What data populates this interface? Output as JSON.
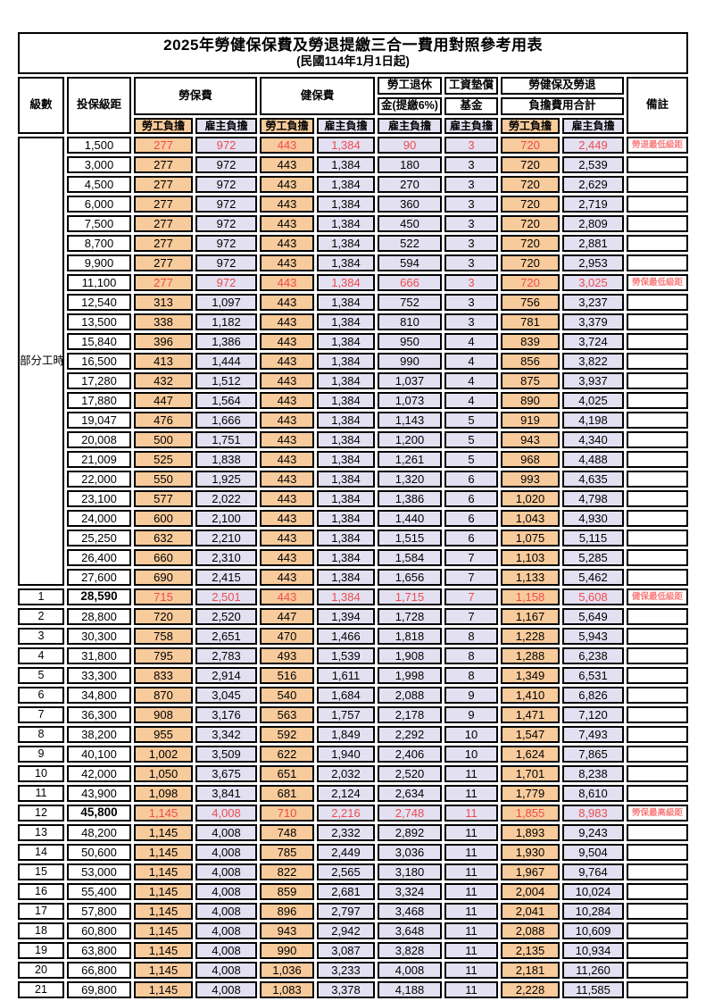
{
  "title": "2025年勞健保保費及勞退提繳三合一費用對照參考用表",
  "subtitle": "(民國114年1月1日起)",
  "header": {
    "level": "級數",
    "bracket": "投保級距",
    "labor_ins": "勞保費",
    "health_ins": "健保費",
    "pension_line1": "勞工退休",
    "pension_line2": "金(提繳6%)",
    "wage_fund_line1": "工資墊償",
    "wage_fund_line2": "基金",
    "total_line1": "勞健保及勞退",
    "total_line2": "負擔費用合計",
    "note": "備註",
    "employee": "勞工負擔",
    "employer": "雇主負擔"
  },
  "colors": {
    "employee_bg": "#F8CB9C",
    "employer_bg": "#E3E1F1",
    "highlight_text": "#EF4B4F",
    "note_text": "#F97F80",
    "border": "#000000"
  },
  "rows": [
    {
      "level": "部分工時",
      "level_rowspan": 23,
      "bracket": "1,500",
      "fees": [
        "277",
        "972",
        "443",
        "1,384",
        "90",
        "3",
        "720",
        "2,449"
      ],
      "note": "勞退最低級距",
      "highlight": true
    },
    {
      "bracket": "3,000",
      "fees": [
        "277",
        "972",
        "443",
        "1,384",
        "180",
        "3",
        "720",
        "2,539"
      ]
    },
    {
      "bracket": "4,500",
      "fees": [
        "277",
        "972",
        "443",
        "1,384",
        "270",
        "3",
        "720",
        "2,629"
      ]
    },
    {
      "bracket": "6,000",
      "fees": [
        "277",
        "972",
        "443",
        "1,384",
        "360",
        "3",
        "720",
        "2,719"
      ]
    },
    {
      "bracket": "7,500",
      "fees": [
        "277",
        "972",
        "443",
        "1,384",
        "450",
        "3",
        "720",
        "2,809"
      ]
    },
    {
      "bracket": "8,700",
      "fees": [
        "277",
        "972",
        "443",
        "1,384",
        "522",
        "3",
        "720",
        "2,881"
      ]
    },
    {
      "bracket": "9,900",
      "fees": [
        "277",
        "972",
        "443",
        "1,384",
        "594",
        "3",
        "720",
        "2,953"
      ]
    },
    {
      "bracket": "11,100",
      "fees": [
        "277",
        "972",
        "443",
        "1,384",
        "666",
        "3",
        "720",
        "3,025"
      ],
      "note": "勞保最低級距",
      "highlight": true
    },
    {
      "bracket": "12,540",
      "fees": [
        "313",
        "1,097",
        "443",
        "1,384",
        "752",
        "3",
        "756",
        "3,237"
      ]
    },
    {
      "bracket": "13,500",
      "fees": [
        "338",
        "1,182",
        "443",
        "1,384",
        "810",
        "3",
        "781",
        "3,379"
      ]
    },
    {
      "bracket": "15,840",
      "fees": [
        "396",
        "1,386",
        "443",
        "1,384",
        "950",
        "4",
        "839",
        "3,724"
      ]
    },
    {
      "bracket": "16,500",
      "fees": [
        "413",
        "1,444",
        "443",
        "1,384",
        "990",
        "4",
        "856",
        "3,822"
      ]
    },
    {
      "bracket": "17,280",
      "fees": [
        "432",
        "1,512",
        "443",
        "1,384",
        "1,037",
        "4",
        "875",
        "3,937"
      ]
    },
    {
      "bracket": "17,880",
      "fees": [
        "447",
        "1,564",
        "443",
        "1,384",
        "1,073",
        "4",
        "890",
        "4,025"
      ]
    },
    {
      "bracket": "19,047",
      "fees": [
        "476",
        "1,666",
        "443",
        "1,384",
        "1,143",
        "5",
        "919",
        "4,198"
      ]
    },
    {
      "bracket": "20,008",
      "fees": [
        "500",
        "1,751",
        "443",
        "1,384",
        "1,200",
        "5",
        "943",
        "4,340"
      ]
    },
    {
      "bracket": "21,009",
      "fees": [
        "525",
        "1,838",
        "443",
        "1,384",
        "1,261",
        "5",
        "968",
        "4,488"
      ]
    },
    {
      "bracket": "22,000",
      "fees": [
        "550",
        "1,925",
        "443",
        "1,384",
        "1,320",
        "6",
        "993",
        "4,635"
      ]
    },
    {
      "bracket": "23,100",
      "fees": [
        "577",
        "2,022",
        "443",
        "1,384",
        "1,386",
        "6",
        "1,020",
        "4,798"
      ]
    },
    {
      "bracket": "24,000",
      "fees": [
        "600",
        "2,100",
        "443",
        "1,384",
        "1,440",
        "6",
        "1,043",
        "4,930"
      ]
    },
    {
      "bracket": "25,250",
      "fees": [
        "632",
        "2,210",
        "443",
        "1,384",
        "1,515",
        "6",
        "1,075",
        "5,115"
      ]
    },
    {
      "bracket": "26,400",
      "fees": [
        "660",
        "2,310",
        "443",
        "1,384",
        "1,584",
        "7",
        "1,103",
        "5,285"
      ]
    },
    {
      "bracket": "27,600",
      "fees": [
        "690",
        "2,415",
        "443",
        "1,384",
        "1,656",
        "7",
        "1,133",
        "5,462"
      ]
    },
    {
      "level": "1",
      "bracket": "28,590",
      "bold_bracket": true,
      "fees": [
        "715",
        "2,501",
        "443",
        "1,384",
        "1,715",
        "7",
        "1,158",
        "5,608"
      ],
      "note": "健保最低級距",
      "highlight": true
    },
    {
      "level": "2",
      "bracket": "28,800",
      "fees": [
        "720",
        "2,520",
        "447",
        "1,394",
        "1,728",
        "7",
        "1,167",
        "5,649"
      ]
    },
    {
      "level": "3",
      "bracket": "30,300",
      "fees": [
        "758",
        "2,651",
        "470",
        "1,466",
        "1,818",
        "8",
        "1,228",
        "5,943"
      ]
    },
    {
      "level": "4",
      "bracket": "31,800",
      "fees": [
        "795",
        "2,783",
        "493",
        "1,539",
        "1,908",
        "8",
        "1,288",
        "6,238"
      ]
    },
    {
      "level": "5",
      "bracket": "33,300",
      "fees": [
        "833",
        "2,914",
        "516",
        "1,611",
        "1,998",
        "8",
        "1,349",
        "6,531"
      ]
    },
    {
      "level": "6",
      "bracket": "34,800",
      "fees": [
        "870",
        "3,045",
        "540",
        "1,684",
        "2,088",
        "9",
        "1,410",
        "6,826"
      ]
    },
    {
      "level": "7",
      "bracket": "36,300",
      "fees": [
        "908",
        "3,176",
        "563",
        "1,757",
        "2,178",
        "9",
        "1,471",
        "7,120"
      ]
    },
    {
      "level": "8",
      "bracket": "38,200",
      "fees": [
        "955",
        "3,342",
        "592",
        "1,849",
        "2,292",
        "10",
        "1,547",
        "7,493"
      ]
    },
    {
      "level": "9",
      "bracket": "40,100",
      "fees": [
        "1,002",
        "3,509",
        "622",
        "1,940",
        "2,406",
        "10",
        "1,624",
        "7,865"
      ]
    },
    {
      "level": "10",
      "bracket": "42,000",
      "fees": [
        "1,050",
        "3,675",
        "651",
        "2,032",
        "2,520",
        "11",
        "1,701",
        "8,238"
      ]
    },
    {
      "level": "11",
      "bracket": "43,900",
      "fees": [
        "1,098",
        "3,841",
        "681",
        "2,124",
        "2,634",
        "11",
        "1,779",
        "8,610"
      ]
    },
    {
      "level": "12",
      "bracket": "45,800",
      "bold_bracket": true,
      "fees": [
        "1,145",
        "4,008",
        "710",
        "2,216",
        "2,748",
        "11",
        "1,855",
        "8,983"
      ],
      "note": "勞保最高級距",
      "highlight": true
    },
    {
      "level": "13",
      "bracket": "48,200",
      "fees": [
        "1,145",
        "4,008",
        "748",
        "2,332",
        "2,892",
        "11",
        "1,893",
        "9,243"
      ]
    },
    {
      "level": "14",
      "bracket": "50,600",
      "fees": [
        "1,145",
        "4,008",
        "785",
        "2,449",
        "3,036",
        "11",
        "1,930",
        "9,504"
      ]
    },
    {
      "level": "15",
      "bracket": "53,000",
      "fees": [
        "1,145",
        "4,008",
        "822",
        "2,565",
        "3,180",
        "11",
        "1,967",
        "9,764"
      ]
    },
    {
      "level": "16",
      "bracket": "55,400",
      "fees": [
        "1,145",
        "4,008",
        "859",
        "2,681",
        "3,324",
        "11",
        "2,004",
        "10,024"
      ]
    },
    {
      "level": "17",
      "bracket": "57,800",
      "fees": [
        "1,145",
        "4,008",
        "896",
        "2,797",
        "3,468",
        "11",
        "2,041",
        "10,284"
      ]
    },
    {
      "level": "18",
      "bracket": "60,800",
      "fees": [
        "1,145",
        "4,008",
        "943",
        "2,942",
        "3,648",
        "11",
        "2,088",
        "10,609"
      ]
    },
    {
      "level": "19",
      "bracket": "63,800",
      "fees": [
        "1,145",
        "4,008",
        "990",
        "3,087",
        "3,828",
        "11",
        "2,135",
        "10,934"
      ]
    },
    {
      "level": "20",
      "bracket": "66,800",
      "fees": [
        "1,145",
        "4,008",
        "1,036",
        "3,233",
        "4,008",
        "11",
        "2,181",
        "11,260"
      ]
    },
    {
      "level": "21",
      "bracket": "69,800",
      "fees": [
        "1,145",
        "4,008",
        "1,083",
        "3,378",
        "4,188",
        "11",
        "2,228",
        "11,585"
      ]
    }
  ]
}
